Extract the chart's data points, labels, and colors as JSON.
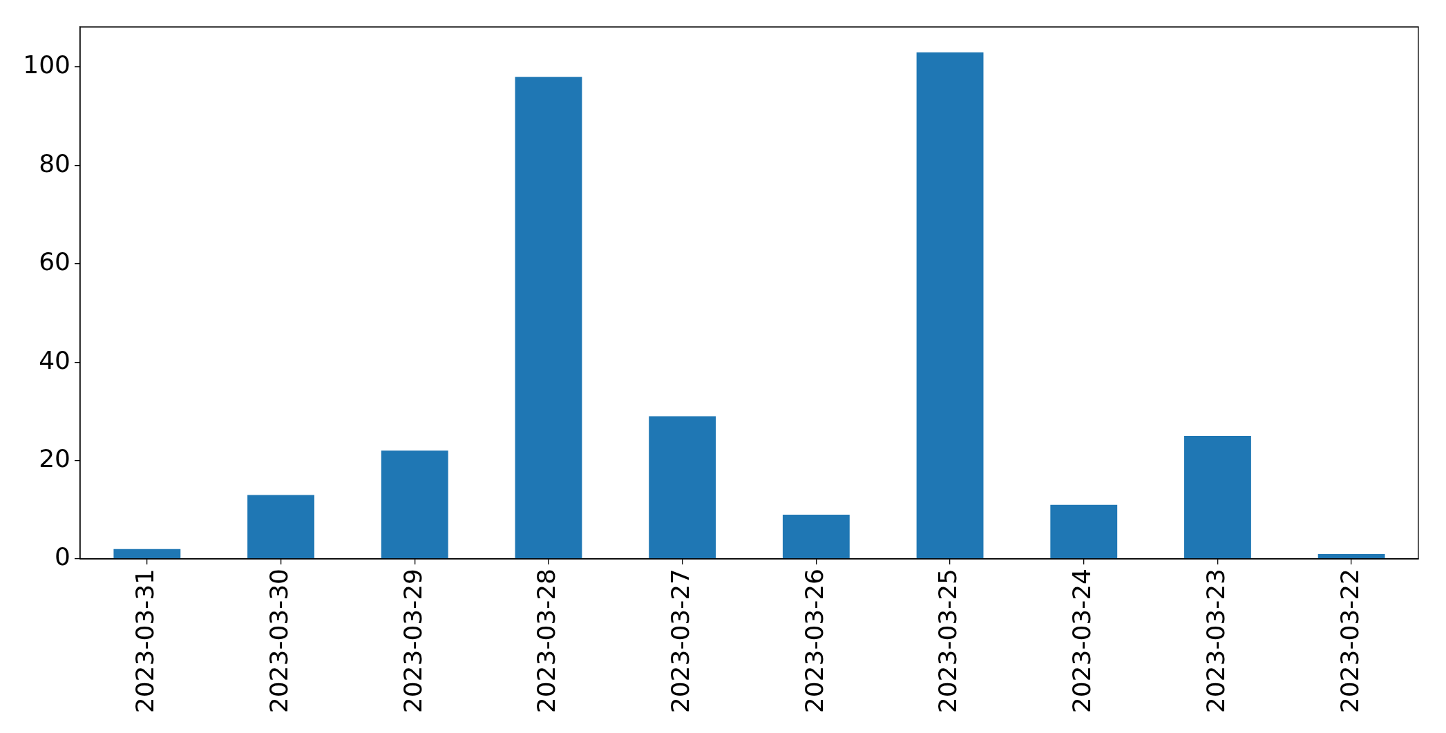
{
  "chart_data": {
    "type": "bar",
    "categories": [
      "2023-03-31",
      "2023-03-30",
      "2023-03-29",
      "2023-03-28",
      "2023-03-27",
      "2023-03-26",
      "2023-03-25",
      "2023-03-24",
      "2023-03-23",
      "2023-03-22"
    ],
    "values": [
      2,
      13,
      22,
      98,
      29,
      9,
      103,
      11,
      25,
      1
    ],
    "color": "#1f77b4",
    "ylim": [
      0,
      108.15
    ],
    "yticks": [
      0,
      20,
      40,
      60,
      80,
      100
    ],
    "grid": false
  }
}
